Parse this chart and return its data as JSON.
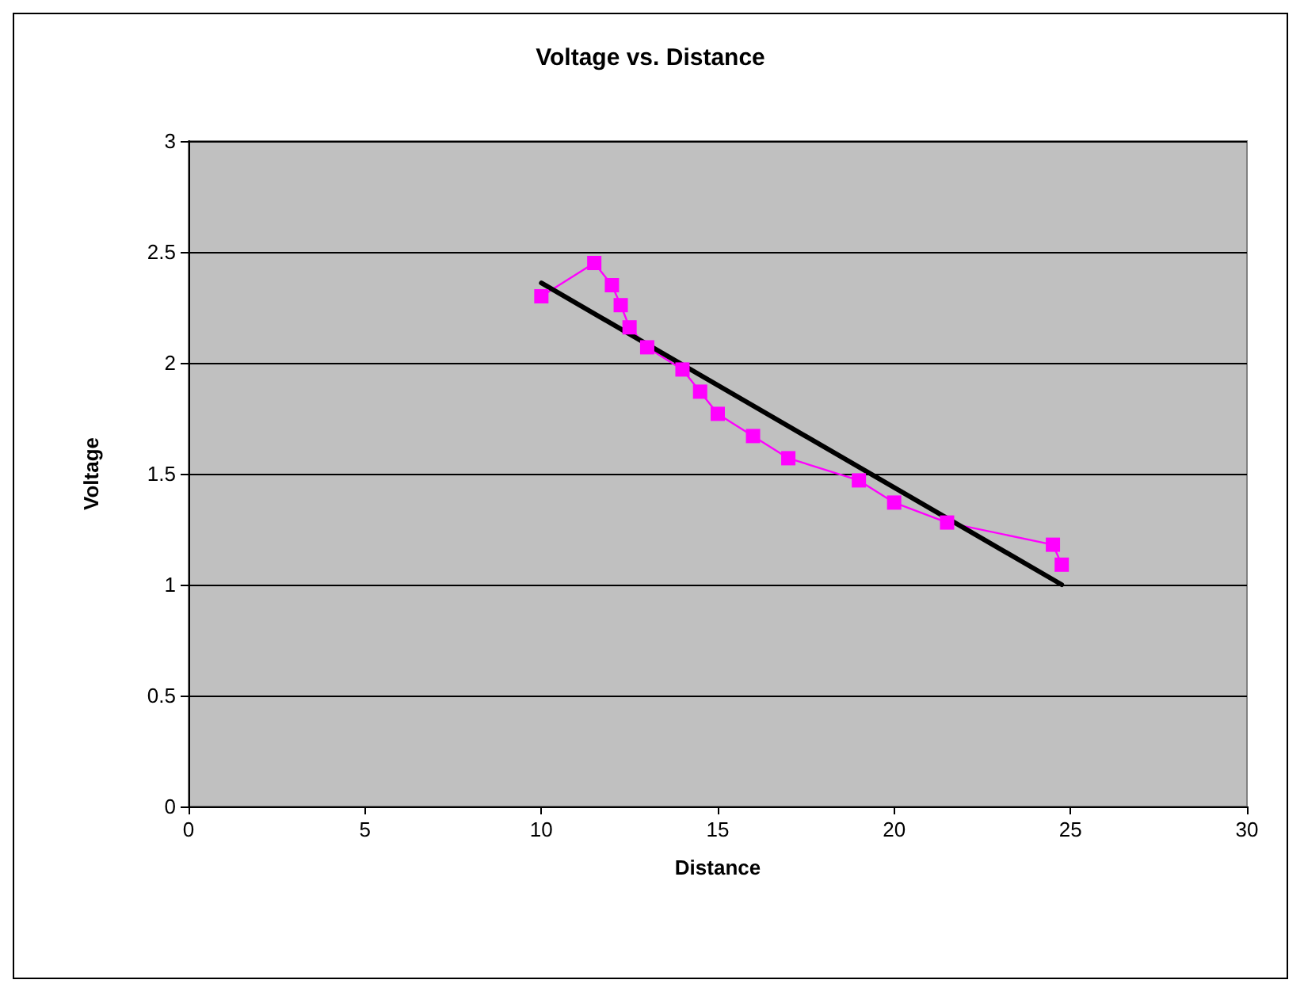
{
  "chart_data": {
    "type": "line",
    "title": "Voltage vs. Distance",
    "xlabel": "Distance",
    "ylabel": "Voltage",
    "xlim": [
      0,
      30
    ],
    "xticks": [
      0,
      5,
      10,
      15,
      20,
      25,
      30
    ],
    "ylim": [
      0,
      3
    ],
    "yticks": [
      0,
      0.5,
      1,
      1.5,
      2,
      2.5,
      3
    ],
    "grid": "y",
    "series": [
      {
        "color": "#ff00ff",
        "marker": "square",
        "x": [
          10,
          11.5,
          12,
          12.25,
          12.5,
          13,
          14,
          14.5,
          15,
          16,
          17,
          19,
          20,
          21.5,
          24.5,
          24.75
        ],
        "values": [
          2.3,
          2.45,
          2.35,
          2.26,
          2.16,
          2.07,
          1.97,
          1.87,
          1.77,
          1.67,
          1.57,
          1.47,
          1.37,
          1.28,
          1.18,
          1.09
        ]
      },
      {
        "color": "#000000",
        "marker": "none",
        "x": [
          10,
          24.75
        ],
        "values": [
          2.36,
          1.0
        ]
      }
    ]
  }
}
